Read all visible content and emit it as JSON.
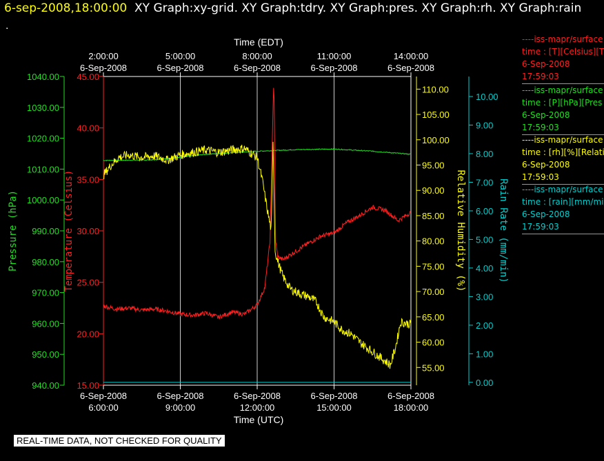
{
  "header": {
    "timestamp": "6-sep-2008,18:00:00",
    "graphs": "XY Graph:xy-grid.  XY Graph:tdry.  XY Graph:pres.  XY Graph:rh.  XY Graph:rain",
    "sub": "."
  },
  "legend": [
    {
      "line1": "----iss-mapr/surface",
      "line2": "time : [T][Celsius][T",
      "date": "6-Sep-2008",
      "time": "17:59:03",
      "color": "#ff2020"
    },
    {
      "line1": "----iss-mapr/surface",
      "line2": "time : [P][hPa][Pres",
      "date": "6-Sep-2008",
      "time": "17:59:03",
      "color": "#20e020"
    },
    {
      "line1": "----iss-mapr/surface",
      "line2": "time : [rh][%][Relati",
      "date": "6-Sep-2008",
      "time": "17:59:03",
      "color": "#ffff00"
    },
    {
      "line1": "----iss-mapr/surface",
      "line2": "time : [rain][mm/min",
      "date": "6-Sep-2008",
      "time": "17:59:03",
      "color": "#00d0d0"
    }
  ],
  "notice": "REAL-TIME DATA, NOT CHECKED FOR QUALITY",
  "chart_data": {
    "type": "line",
    "x_top_label": "Time (EDT)",
    "x_bottom_label": "Time (UTC)",
    "x_range_utc_hours": [
      6,
      18
    ],
    "top_ticks": [
      {
        "t": 6,
        "l1": "2:00:00",
        "l2": "6-Sep-2008"
      },
      {
        "t": 9,
        "l1": "5:00:00",
        "l2": "6-Sep-2008"
      },
      {
        "t": 12,
        "l1": "8:00:00",
        "l2": "6-Sep-2008"
      },
      {
        "t": 15,
        "l1": "11:00:00",
        "l2": "6-Sep-2008"
      },
      {
        "t": 18,
        "l1": "14:00:00",
        "l2": "6-Sep-2008"
      }
    ],
    "bottom_ticks": [
      {
        "t": 6,
        "l1": "6-Sep-2008",
        "l2": "6:00:00"
      },
      {
        "t": 9,
        "l1": "6-Sep-2008",
        "l2": "9:00:00"
      },
      {
        "t": 12,
        "l1": "6-Sep-2008",
        "l2": "12:00:00"
      },
      {
        "t": 15,
        "l1": "6-Sep-2008",
        "l2": "15:00:00"
      },
      {
        "t": 18,
        "l1": "6-Sep-2008",
        "l2": "18:00:00"
      }
    ],
    "axes": {
      "pressure": {
        "label": "Pressure (hPa)",
        "range": [
          940,
          1040
        ],
        "ticks": [
          "940.00",
          "950.00",
          "960.00",
          "970.00",
          "980.00",
          "990.00",
          "1000.00",
          "1010.00",
          "1020.00",
          "1030.00",
          "1040.00"
        ],
        "color": "#20e020"
      },
      "temperature": {
        "label": "Temperature (Celsius)",
        "range": [
          15,
          45
        ],
        "ticks": [
          "15.00",
          "20.00",
          "25.00",
          "30.00",
          "35.00",
          "40.00",
          "45.00"
        ],
        "color": "#ff2020"
      },
      "humidity": {
        "label": "Relative Humidity (%)",
        "range": [
          51.5,
          112.5
        ],
        "ticks": [
          "55.00",
          "60.00",
          "65.00",
          "70.00",
          "75.00",
          "80.00",
          "85.00",
          "90.00",
          "95.00",
          "100.00",
          "105.00",
          "110.00"
        ],
        "color": "#ffff00"
      },
      "rain": {
        "label": "Rain Rate (mm/min)",
        "range": [
          -0.1,
          10.7
        ],
        "ticks": [
          "0.00",
          "1.00",
          "2.00",
          "3.00",
          "4.00",
          "5.00",
          "6.00",
          "7.00",
          "8.00",
          "9.00",
          "10.00"
        ],
        "color": "#00d0d0"
      }
    },
    "series": [
      {
        "name": "Pressure",
        "axis": "pressure",
        "color": "#20e020",
        "points": [
          [
            6,
            1012.8
          ],
          [
            8,
            1013.0
          ],
          [
            10,
            1014.8
          ],
          [
            12,
            1015.8
          ],
          [
            13.5,
            1016.3
          ],
          [
            15,
            1016.5
          ],
          [
            16.5,
            1015.8
          ],
          [
            18,
            1014.8
          ]
        ]
      },
      {
        "name": "Temperature",
        "axis": "temperature",
        "color": "#ff2020",
        "points": [
          [
            6,
            22.7
          ],
          [
            6.5,
            22.4
          ],
          [
            7,
            22.5
          ],
          [
            7.5,
            22.3
          ],
          [
            8,
            22.4
          ],
          [
            8.5,
            22.2
          ],
          [
            9,
            21.9
          ],
          [
            9.5,
            21.8
          ],
          [
            10,
            22.0
          ],
          [
            10.5,
            21.6
          ],
          [
            11,
            22.1
          ],
          [
            11.5,
            21.9
          ],
          [
            12,
            22.8
          ],
          [
            12.3,
            24.5
          ],
          [
            12.5,
            29.0
          ],
          [
            12.6,
            40.0
          ],
          [
            12.65,
            45.0
          ],
          [
            12.72,
            29.0
          ],
          [
            12.8,
            27.5
          ],
          [
            13,
            27.2
          ],
          [
            13.5,
            28.0
          ],
          [
            14,
            28.8
          ],
          [
            14.5,
            29.5
          ],
          [
            15,
            29.8
          ],
          [
            15.5,
            30.8
          ],
          [
            16,
            31.5
          ],
          [
            16.5,
            32.3
          ],
          [
            17,
            32.0
          ],
          [
            17.5,
            31.0
          ],
          [
            18,
            31.8
          ]
        ]
      },
      {
        "name": "Relative Humidity",
        "axis": "humidity",
        "color": "#ffff00",
        "points": [
          [
            6,
            93.0
          ],
          [
            6.3,
            95.0
          ],
          [
            6.6,
            96.5
          ],
          [
            7,
            97.0
          ],
          [
            7.5,
            96.5
          ],
          [
            8,
            96.8
          ],
          [
            8.5,
            96.0
          ],
          [
            9,
            97.0
          ],
          [
            9.5,
            97.5
          ],
          [
            10,
            98.0
          ],
          [
            10.5,
            97.5
          ],
          [
            11,
            98.0
          ],
          [
            11.5,
            98.3
          ],
          [
            12,
            96.5
          ],
          [
            12.2,
            92.0
          ],
          [
            12.4,
            86.0
          ],
          [
            12.55,
            82.0
          ],
          [
            12.62,
            100.0
          ],
          [
            12.7,
            78.0
          ],
          [
            12.8,
            76.0
          ],
          [
            13,
            73.0
          ],
          [
            13.3,
            70.5
          ],
          [
            13.7,
            69.5
          ],
          [
            14,
            69.0
          ],
          [
            14.3,
            68.0
          ],
          [
            14.6,
            65.0
          ],
          [
            15,
            64.0
          ],
          [
            15.3,
            62.5
          ],
          [
            15.7,
            61.5
          ],
          [
            16,
            60.0
          ],
          [
            16.4,
            58.5
          ],
          [
            16.8,
            57.0
          ],
          [
            17.2,
            55.5
          ],
          [
            17.4,
            59.0
          ],
          [
            17.6,
            64.0
          ],
          [
            18,
            63.5
          ]
        ]
      },
      {
        "name": "Rain Rate",
        "axis": "rain",
        "color": "#00d0d0",
        "points": [
          [
            6,
            0.0
          ],
          [
            18,
            0.0
          ]
        ]
      }
    ]
  }
}
